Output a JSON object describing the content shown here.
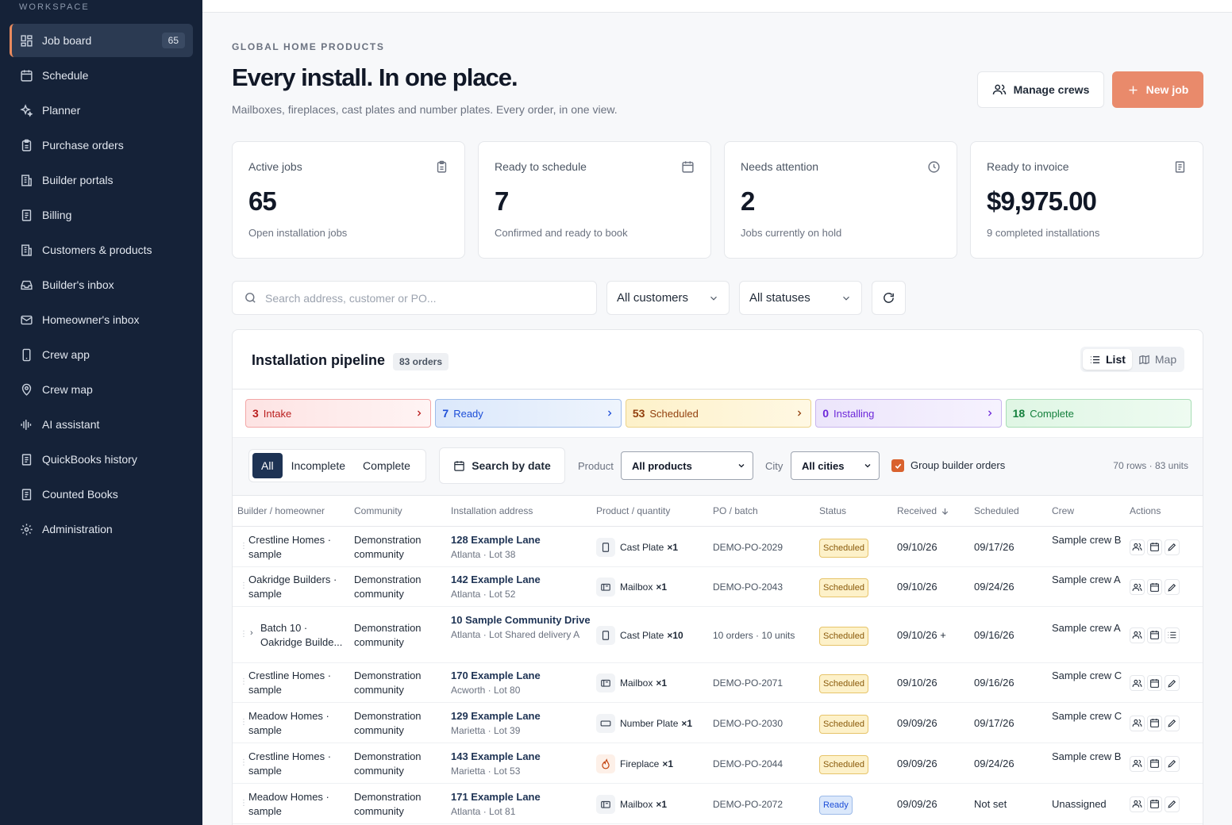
{
  "sidebar": {
    "section_label": "WORKSPACE",
    "items": [
      {
        "label": "Job board",
        "icon": "grid-icon",
        "count": "65",
        "active": true
      },
      {
        "label": "Schedule",
        "icon": "calendar-icon"
      },
      {
        "label": "Planner",
        "icon": "sparkles-icon"
      },
      {
        "label": "Purchase orders",
        "icon": "clipboard-icon"
      },
      {
        "label": "Builder portals",
        "icon": "building-icon"
      },
      {
        "label": "Billing",
        "icon": "receipt-icon"
      },
      {
        "label": "Customers & products",
        "icon": "store-icon"
      },
      {
        "label": "Builder's inbox",
        "icon": "inbox-icon"
      },
      {
        "label": "Homeowner's inbox",
        "icon": "mail-icon"
      },
      {
        "label": "Crew app",
        "icon": "phone-icon"
      },
      {
        "label": "Crew map",
        "icon": "map-pin-icon"
      },
      {
        "label": "AI assistant",
        "icon": "waveform-icon"
      },
      {
        "label": "QuickBooks history",
        "icon": "receipt-icon"
      },
      {
        "label": "Counted Books",
        "icon": "receipt-icon"
      },
      {
        "label": "Administration",
        "icon": "gear-icon"
      }
    ]
  },
  "header": {
    "company": "GLOBAL HOME PRODUCTS",
    "title": "Every install. In one place.",
    "subtitle": "Mailboxes, fireplaces, cast plates and number plates. Every order, in one view.",
    "manage_crews_label": "Manage crews",
    "new_job_label": "New job"
  },
  "stats": [
    {
      "label": "Active jobs",
      "value": "65",
      "sub": "Open installation jobs",
      "icon": "clipboard-icon"
    },
    {
      "label": "Ready to schedule",
      "value": "7",
      "sub": "Confirmed and ready to book",
      "icon": "calendar-icon"
    },
    {
      "label": "Needs attention",
      "value": "2",
      "sub": "Jobs currently on hold",
      "icon": "clock-icon"
    },
    {
      "label": "Ready to invoice",
      "value": "$9,975.00",
      "sub": "9 completed installations",
      "icon": "receipt-icon"
    }
  ],
  "toolbar": {
    "search_placeholder": "Search address, customer or PO...",
    "customers_value": "All customers",
    "statuses_value": "All statuses"
  },
  "pipeline": {
    "title": "Installation pipeline",
    "badge": "83 orders",
    "view_list": "List",
    "view_map": "Map",
    "stages": [
      {
        "count": "3",
        "name": "Intake"
      },
      {
        "count": "7",
        "name": "Ready"
      },
      {
        "count": "53",
        "name": "Scheduled"
      },
      {
        "count": "0",
        "name": "Installing"
      },
      {
        "count": "18",
        "name": "Complete"
      }
    ]
  },
  "filters": {
    "segments": [
      "All",
      "Incomplete",
      "Complete"
    ],
    "search_by_date": "Search by date",
    "product_label": "Product",
    "product_value": "All products",
    "city_label": "City",
    "city_value": "All cities",
    "group_label": "Group builder orders",
    "group_checked": true,
    "row_count": "70 rows · 83 units"
  },
  "table": {
    "headers": [
      "Builder / homeowner",
      "Community",
      "Installation address",
      "Product / quantity",
      "PO / batch",
      "Status",
      "Received",
      "Scheduled",
      "Crew",
      "Actions"
    ],
    "rows": [
      {
        "builder": "Crestline Homes · sample",
        "community": "Demonstration community",
        "addr1": "128 Example Lane",
        "addr2": "Atlanta · Lot 38",
        "product": "Cast Plate",
        "qty": "×1",
        "picon": "plate-icon",
        "po": "DEMO-PO-2029",
        "status": "Scheduled",
        "received": "09/10/26",
        "scheduled": "09/17/26",
        "crew": "Sample crew B"
      },
      {
        "builder": "Oakridge Builders · sample",
        "community": "Demonstration community",
        "addr1": "142 Example Lane",
        "addr2": "Atlanta · Lot 52",
        "product": "Mailbox",
        "qty": "×1",
        "picon": "mailbox-icon",
        "po": "DEMO-PO-2043",
        "status": "Scheduled",
        "received": "09/10/26",
        "scheduled": "09/24/26",
        "crew": "Sample crew A"
      },
      {
        "builder": "Batch 10 · Oakridge Builde...",
        "community": "Demonstration community",
        "addr1": "10 Sample Community Drive",
        "addr2": "Atlanta · Lot Shared delivery A",
        "product": "Cast Plate",
        "qty": "×10",
        "picon": "plate-icon",
        "po": "10 orders · 10 units",
        "status": "Scheduled",
        "received": "09/10/26 +",
        "scheduled": "09/16/26",
        "crew": "Sample crew A",
        "batch": true
      },
      {
        "builder": "Crestline Homes · sample",
        "community": "Demonstration community",
        "addr1": "170 Example Lane",
        "addr2": "Acworth · Lot 80",
        "product": "Mailbox",
        "qty": "×1",
        "picon": "mailbox-icon",
        "po": "DEMO-PO-2071",
        "status": "Scheduled",
        "received": "09/10/26",
        "scheduled": "09/16/26",
        "crew": "Sample crew C"
      },
      {
        "builder": "Meadow Homes · sample",
        "community": "Demonstration community",
        "addr1": "129 Example Lane",
        "addr2": "Marietta · Lot 39",
        "product": "Number Plate",
        "qty": "×1",
        "picon": "number-plate-icon",
        "po": "DEMO-PO-2030",
        "status": "Scheduled",
        "received": "09/09/26",
        "scheduled": "09/17/26",
        "crew": "Sample crew C"
      },
      {
        "builder": "Crestline Homes · sample",
        "community": "Demonstration community",
        "addr1": "143 Example Lane",
        "addr2": "Marietta · Lot 53",
        "product": "Fireplace",
        "qty": "×1",
        "picon": "flame-icon",
        "po": "DEMO-PO-2044",
        "status": "Scheduled",
        "received": "09/09/26",
        "scheduled": "09/24/26",
        "crew": "Sample crew B"
      },
      {
        "builder": "Meadow Homes · sample",
        "community": "Demonstration community",
        "addr1": "171 Example Lane",
        "addr2": "Atlanta · Lot 81",
        "product": "Mailbox",
        "qty": "×1",
        "picon": "mailbox-icon",
        "po": "DEMO-PO-2072",
        "status": "Ready",
        "received": "09/09/26",
        "scheduled": "Not set",
        "crew": "Unassigned"
      }
    ]
  }
}
